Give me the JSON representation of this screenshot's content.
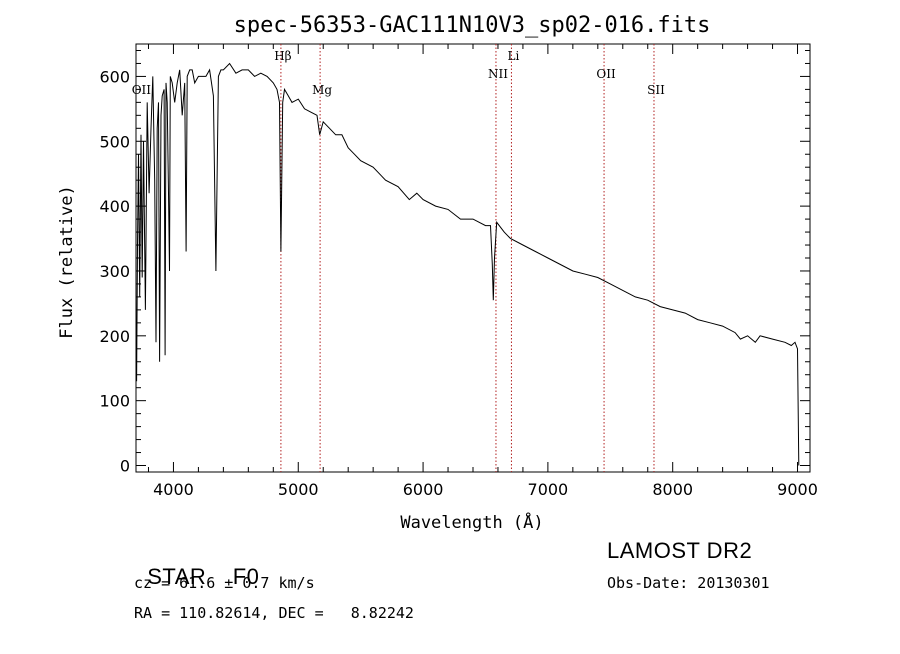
{
  "chart_data": {
    "type": "line",
    "title": "spec-56353-GAC111N10V3_sp02-016.fits",
    "xlabel": "Wavelength (Å)",
    "ylabel": "Flux (relative)",
    "xlim": [
      3700,
      9100
    ],
    "ylim": [
      -10,
      650
    ],
    "x_ticks": [
      4000,
      5000,
      6000,
      7000,
      8000,
      9000
    ],
    "y_ticks": [
      0,
      100,
      200,
      300,
      400,
      500,
      600
    ],
    "grid": false,
    "series": [
      {
        "x": [
          3705,
          3712,
          3720,
          3730,
          3740,
          3750,
          3760,
          3775,
          3790,
          3805,
          3820,
          3835,
          3850,
          3860,
          3870,
          3880,
          3889,
          3900,
          3910,
          3925,
          3933,
          3940,
          3950,
          3960,
          3968,
          3975,
          3990,
          4010,
          4030,
          4050,
          4070,
          4090,
          4101,
          4110,
          4130,
          4150,
          4170,
          4200,
          4230,
          4260,
          4290,
          4320,
          4340,
          4360,
          4380,
          4400,
          4450,
          4500,
          4550,
          4600,
          4650,
          4700,
          4750,
          4800,
          4830,
          4850,
          4861,
          4875,
          4890,
          4920,
          4950,
          5000,
          5050,
          5100,
          5150,
          5172,
          5200,
          5250,
          5300,
          5350,
          5400,
          5450,
          5500,
          5600,
          5700,
          5800,
          5890,
          5950,
          6000,
          6100,
          6200,
          6300,
          6400,
          6500,
          6540,
          6555,
          6563,
          6572,
          6590,
          6650,
          6700,
          6800,
          6900,
          7000,
          7100,
          7200,
          7300,
          7400,
          7500,
          7600,
          7700,
          7800,
          7900,
          8000,
          8100,
          8200,
          8300,
          8400,
          8500,
          8542,
          8600,
          8662,
          8700,
          8800,
          8900,
          8950,
          8980,
          9000,
          9010
        ],
        "y": [
          130,
          340,
          480,
          260,
          510,
          290,
          500,
          240,
          560,
          420,
          520,
          600,
          440,
          190,
          520,
          560,
          160,
          540,
          570,
          580,
          170,
          590,
          560,
          420,
          300,
          600,
          590,
          560,
          590,
          610,
          540,
          590,
          330,
          600,
          610,
          610,
          590,
          600,
          600,
          600,
          610,
          570,
          300,
          600,
          610,
          610,
          620,
          605,
          610,
          610,
          600,
          605,
          600,
          590,
          580,
          560,
          330,
          560,
          580,
          570,
          560,
          565,
          550,
          545,
          540,
          510,
          530,
          520,
          510,
          510,
          490,
          480,
          470,
          460,
          440,
          430,
          410,
          420,
          410,
          400,
          395,
          380,
          380,
          370,
          370,
          310,
          255,
          320,
          375,
          360,
          350,
          340,
          330,
          320,
          310,
          300,
          295,
          290,
          280,
          270,
          260,
          255,
          245,
          240,
          235,
          225,
          220,
          215,
          205,
          195,
          200,
          190,
          200,
          195,
          190,
          185,
          190,
          180,
          0
        ]
      }
    ],
    "line_markers": [
      {
        "label": "OII",
        "x": 3727
      },
      {
        "label": "Hβ",
        "x": 4861
      },
      {
        "label": "Mg",
        "x": 5175
      },
      {
        "label": "NII",
        "x": 6584
      },
      {
        "label": "Li",
        "x": 6708
      },
      {
        "label": "OII",
        "x": 7450
      },
      {
        "label": "SII",
        "x": 7850
      }
    ],
    "marker_color": "#b22222",
    "line_color": "#000000"
  },
  "info": {
    "object_class": "STAR",
    "subclass": "F0",
    "survey": "LAMOST DR2",
    "cz": "cz = 61.6 ± 0.7 km/s",
    "obs_date": "Obs-Date: 20130301",
    "coords": "RA = 110.82614, DEC =   8.82242"
  }
}
